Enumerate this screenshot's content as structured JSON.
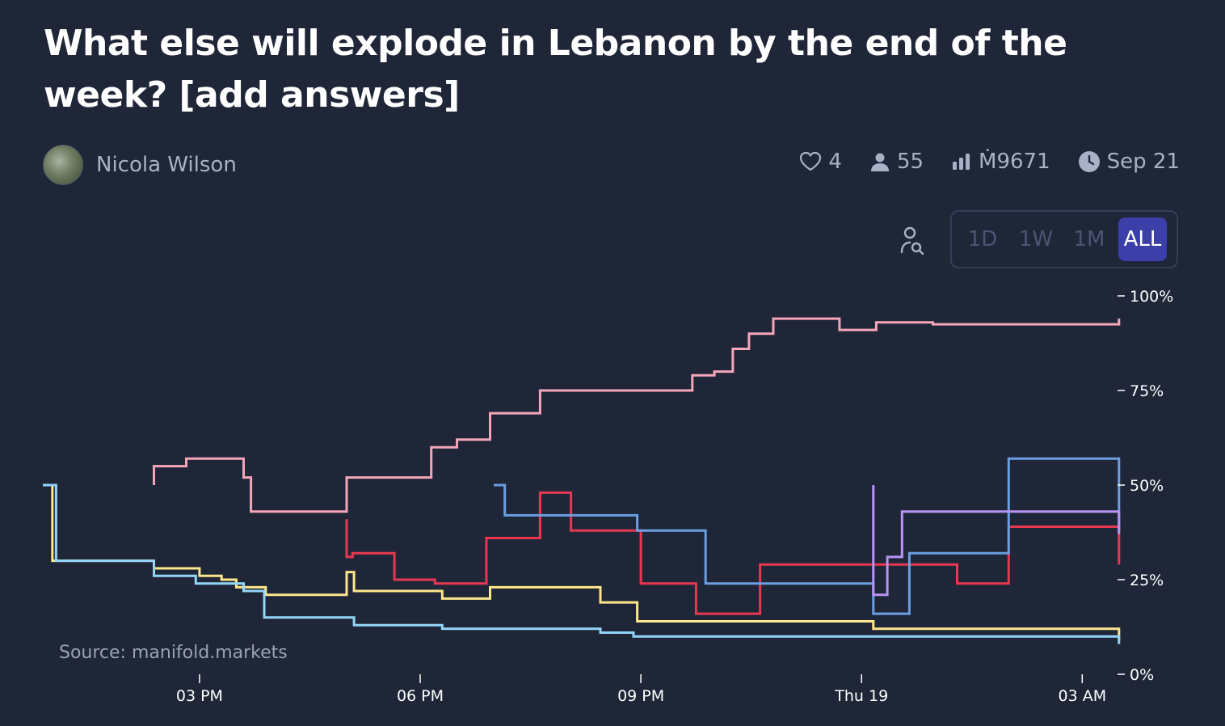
{
  "title": "What else will explode in Lebanon by the end of the week? [add answers]",
  "author": {
    "name": "Nicola Wilson",
    "avatar_icon": "user-avatar"
  },
  "stats": {
    "likes": "4",
    "traders": "55",
    "volume": "Ṁ9671",
    "close_date": "Sep 21"
  },
  "time_range": {
    "options": [
      "1D",
      "1W",
      "1M",
      "ALL"
    ],
    "selected": "ALL"
  },
  "source": "Source: manifold.markets",
  "chart_data": {
    "type": "line",
    "step": true,
    "x_ticks": [
      {
        "label": "03 PM",
        "t": 3
      },
      {
        "label": "06 PM",
        "t": 6
      },
      {
        "label": "09 PM",
        "t": 9
      },
      {
        "label": "Thu 19",
        "t": 12
      },
      {
        "label": "03 AM",
        "t": 15
      }
    ],
    "xlim": [
      0.87,
      15.48
    ],
    "y_ticks": [
      "0%",
      "25%",
      "50%",
      "75%",
      "100%"
    ],
    "ylim": [
      0,
      100
    ],
    "grid": false,
    "series": [
      {
        "color": "#f4a6b8",
        "points": [
          [
            2.38,
            50
          ],
          [
            2.38,
            55
          ],
          [
            2.82,
            55
          ],
          [
            2.82,
            57
          ],
          [
            3.6,
            57
          ],
          [
            3.6,
            52
          ],
          [
            3.7,
            52
          ],
          [
            3.7,
            43
          ],
          [
            5.0,
            43
          ],
          [
            5.0,
            52
          ],
          [
            6.15,
            52
          ],
          [
            6.15,
            60
          ],
          [
            6.5,
            60
          ],
          [
            6.5,
            62
          ],
          [
            6.95,
            62
          ],
          [
            6.95,
            69
          ],
          [
            7.63,
            69
          ],
          [
            7.63,
            75
          ],
          [
            9.7,
            75
          ],
          [
            9.7,
            79
          ],
          [
            10.0,
            79
          ],
          [
            10.0,
            80
          ],
          [
            10.25,
            80
          ],
          [
            10.25,
            86
          ],
          [
            10.47,
            86
          ],
          [
            10.47,
            90
          ],
          [
            10.8,
            90
          ],
          [
            10.8,
            94
          ],
          [
            11.7,
            94
          ],
          [
            11.7,
            91
          ],
          [
            12.2,
            91
          ],
          [
            12.2,
            93
          ],
          [
            12.97,
            93
          ],
          [
            12.97,
            92.5
          ],
          [
            15.5,
            92.5
          ],
          [
            15.5,
            94
          ]
        ]
      },
      {
        "color": "#e8384f",
        "points": [
          [
            5.0,
            41
          ],
          [
            5.0,
            31
          ],
          [
            5.08,
            31
          ],
          [
            5.08,
            32
          ],
          [
            5.65,
            32
          ],
          [
            5.65,
            25
          ],
          [
            6.2,
            25
          ],
          [
            6.2,
            24
          ],
          [
            6.9,
            24
          ],
          [
            6.9,
            36
          ],
          [
            7.63,
            36
          ],
          [
            7.63,
            48
          ],
          [
            8.05,
            48
          ],
          [
            8.05,
            38
          ],
          [
            9.0,
            38
          ],
          [
            9.0,
            24
          ],
          [
            9.75,
            24
          ],
          [
            9.75,
            16
          ],
          [
            10.62,
            16
          ],
          [
            10.62,
            29
          ],
          [
            12.16,
            29
          ],
          [
            12.16,
            29
          ],
          [
            13.3,
            29
          ],
          [
            13.3,
            24
          ],
          [
            14.0,
            24
          ],
          [
            14.0,
            39
          ],
          [
            15.5,
            39
          ],
          [
            15.5,
            29
          ]
        ]
      },
      {
        "color": "#fde68a",
        "points": [
          [
            0.87,
            50
          ],
          [
            1.0,
            50
          ],
          [
            1.0,
            30
          ],
          [
            2.38,
            30
          ],
          [
            2.38,
            28
          ],
          [
            3.0,
            28
          ],
          [
            3.0,
            26
          ],
          [
            3.3,
            26
          ],
          [
            3.3,
            25
          ],
          [
            3.5,
            25
          ],
          [
            3.5,
            23
          ],
          [
            3.9,
            23
          ],
          [
            3.9,
            21
          ],
          [
            5.0,
            21
          ],
          [
            5.0,
            27
          ],
          [
            5.1,
            27
          ],
          [
            5.1,
            22
          ],
          [
            6.3,
            22
          ],
          [
            6.3,
            20
          ],
          [
            6.95,
            20
          ],
          [
            6.95,
            23
          ],
          [
            8.45,
            23
          ],
          [
            8.45,
            19
          ],
          [
            8.95,
            19
          ],
          [
            8.95,
            14
          ],
          [
            12.16,
            14
          ],
          [
            12.16,
            12
          ],
          [
            15.5,
            12
          ],
          [
            15.5,
            9
          ]
        ]
      },
      {
        "color": "#93d5f9",
        "points": [
          [
            0.87,
            50
          ],
          [
            1.05,
            50
          ],
          [
            1.05,
            30
          ],
          [
            2.38,
            30
          ],
          [
            2.38,
            26
          ],
          [
            2.95,
            26
          ],
          [
            2.95,
            24
          ],
          [
            3.6,
            24
          ],
          [
            3.6,
            22
          ],
          [
            3.88,
            22
          ],
          [
            3.88,
            15
          ],
          [
            5.1,
            15
          ],
          [
            5.1,
            13
          ],
          [
            6.3,
            13
          ],
          [
            6.3,
            12
          ],
          [
            8.45,
            12
          ],
          [
            8.45,
            11
          ],
          [
            8.9,
            11
          ],
          [
            8.9,
            10
          ],
          [
            15.5,
            10
          ],
          [
            15.5,
            8
          ]
        ]
      },
      {
        "color": "#6a9fe0",
        "points": [
          [
            7.0,
            50
          ],
          [
            7.15,
            50
          ],
          [
            7.15,
            42
          ],
          [
            8.95,
            42
          ],
          [
            8.95,
            38
          ],
          [
            9.88,
            38
          ],
          [
            9.88,
            24
          ],
          [
            12.16,
            24
          ],
          [
            12.16,
            16
          ],
          [
            12.65,
            16
          ],
          [
            12.65,
            32
          ],
          [
            14.0,
            32
          ],
          [
            14.0,
            57
          ],
          [
            15.5,
            57
          ],
          [
            15.5,
            38
          ]
        ]
      },
      {
        "color": "#b794f4",
        "points": [
          [
            12.16,
            50
          ],
          [
            12.16,
            21
          ],
          [
            12.35,
            21
          ],
          [
            12.35,
            31
          ],
          [
            12.55,
            31
          ],
          [
            12.55,
            43
          ],
          [
            15.5,
            43
          ],
          [
            15.5,
            37
          ]
        ]
      }
    ]
  }
}
